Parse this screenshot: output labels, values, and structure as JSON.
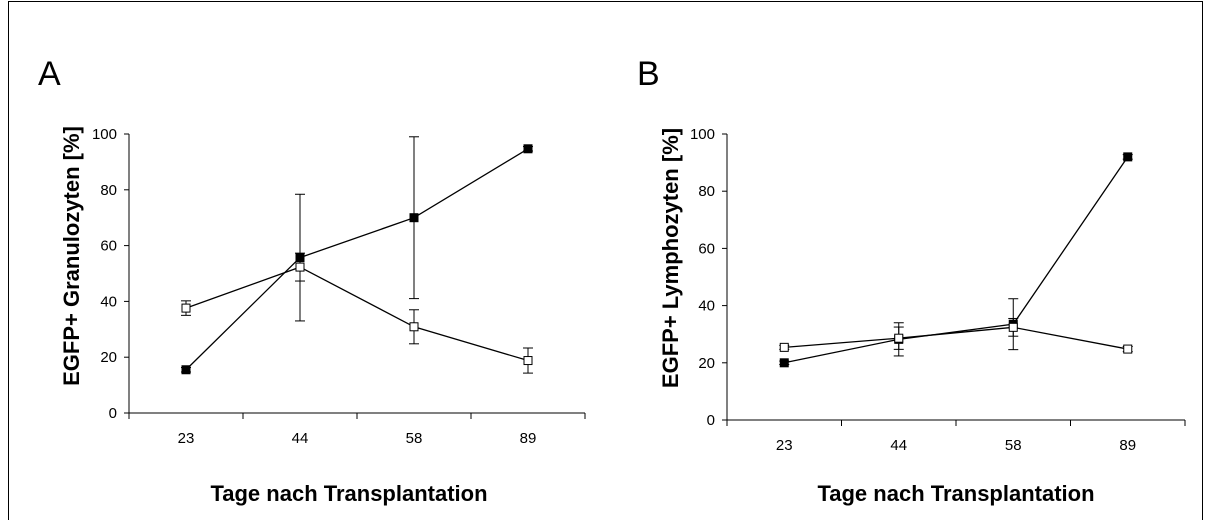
{
  "chart_data": [
    {
      "type": "line",
      "panel_label": "A",
      "title": "",
      "xlabel": "Tage nach Transplantation",
      "ylabel": "EGFP+ Granulozyten [%]",
      "categories": [
        "23",
        "44",
        "58",
        "89"
      ],
      "ylim": [
        0,
        100
      ],
      "yticks": [
        "0",
        "20",
        "40",
        "60",
        "80",
        "100"
      ],
      "grid": false,
      "legend": "none",
      "series": [
        {
          "marker": "filled-square",
          "color": "#000000",
          "values": [
            15.5,
            55.7,
            70,
            94.7
          ],
          "error": [
            0.8,
            22.7,
            29,
            0.8
          ]
        },
        {
          "marker": "open-square",
          "color": "#000000",
          "values": [
            37.6,
            52.3,
            30.9,
            18.8
          ],
          "error": [
            2.6,
            5,
            6.1,
            4.5
          ]
        }
      ]
    },
    {
      "type": "line",
      "panel_label": "B",
      "title": "",
      "xlabel": "Tage nach Transplantation",
      "ylabel": "EGFP+ Lymphozyten [%]",
      "categories": [
        "23",
        "44",
        "58",
        "89"
      ],
      "ylim": [
        0,
        100
      ],
      "yticks": [
        "0",
        "20",
        "40",
        "60",
        "80",
        "100"
      ],
      "grid": false,
      "legend": "none",
      "series": [
        {
          "marker": "filled-square",
          "color": "#000000",
          "values": [
            20,
            28.2,
            33.5,
            92
          ],
          "error": [
            0.6,
            5.8,
            8.9,
            0.8
          ]
        },
        {
          "marker": "open-square",
          "color": "#000000",
          "values": [
            25.4,
            28.6,
            32.4,
            24.8
          ],
          "error": [
            0.7,
            3.9,
            3.1,
            0.9
          ]
        }
      ]
    }
  ]
}
